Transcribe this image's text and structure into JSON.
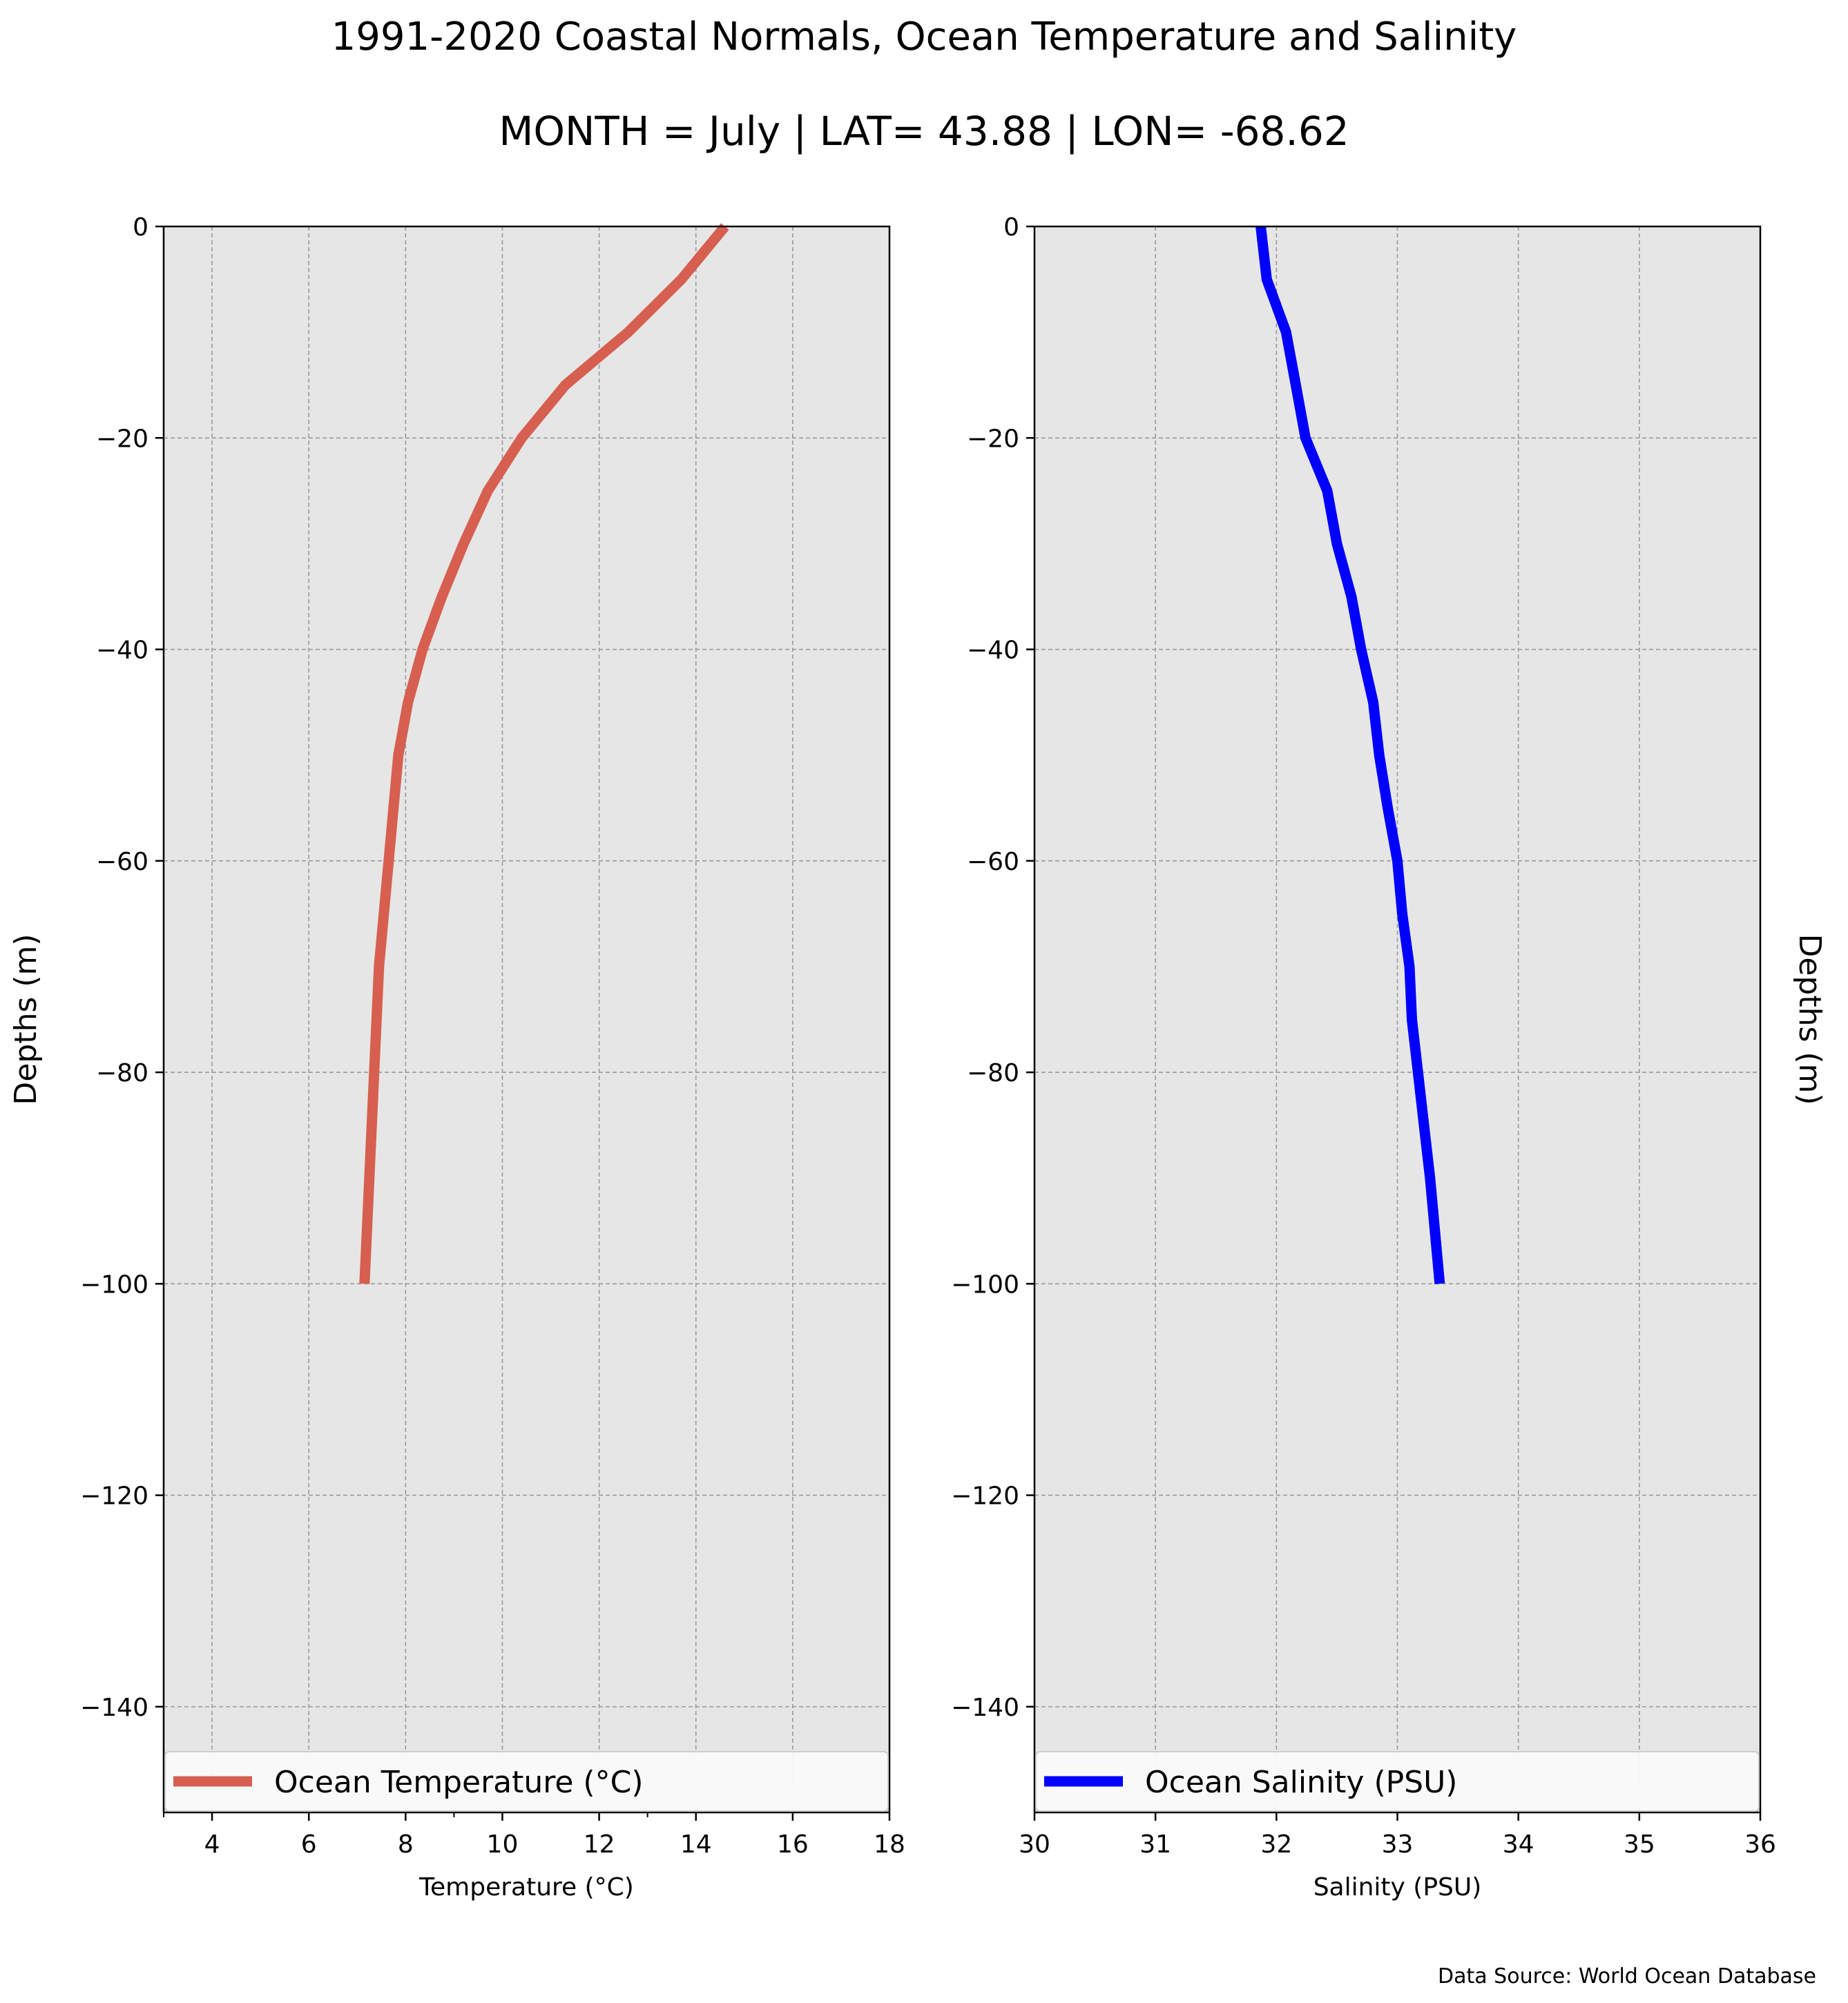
{
  "figure": {
    "title": "1991-2020 Coastal Normals, Ocean Temperature and Salinity",
    "subtitle": "MONTH = July | LAT= 43.88 | LON= -68.62",
    "source_note": "Data Source: World Ocean Database"
  },
  "colors": {
    "plot_background": "#e6e6e6",
    "grid": "#999999",
    "temperature_line": "#d65f50",
    "salinity_line": "#0000ff"
  },
  "chart_data": [
    {
      "type": "line",
      "xlabel": "Temperature ($^\\circ$C)",
      "xlabel_display": "Temperature (°C)",
      "ylabel": "Depths (m)",
      "xlim": [
        3,
        18
      ],
      "ylim": [
        -150,
        0
      ],
      "xticks": [
        "4",
        "6",
        "8",
        "10",
        "12",
        "14",
        "16",
        "18"
      ],
      "xtick_values": [
        4,
        6,
        8,
        10,
        12,
        14,
        16,
        18
      ],
      "minor_xtick_values": [
        3,
        9,
        13
      ],
      "yticks": [
        "0",
        "−20",
        "−40",
        "−60",
        "−80",
        "−100",
        "−120",
        "−140"
      ],
      "ytick_values": [
        0,
        -20,
        -40,
        -60,
        -80,
        -100,
        -120,
        -140
      ],
      "grid": true,
      "legend_position": "bottom",
      "series": [
        {
          "name": "Ocean Temperature ($^\\circ$C)",
          "legend_display": "Ocean Temperature (°C)",
          "color": "#d65f50",
          "x": [
            14.6,
            13.7,
            12.6,
            11.3,
            10.4,
            9.7,
            9.2,
            8.75,
            8.35,
            8.05,
            7.85,
            7.75,
            7.65,
            7.55,
            7.45,
            7.4,
            7.35,
            7.3,
            7.25,
            7.2,
            7.15
          ],
          "y": [
            0,
            -5,
            -10,
            -15,
            -20,
            -25,
            -30,
            -35,
            -40,
            -45,
            -50,
            -55,
            -60,
            -65,
            -70,
            -75,
            -80,
            -85,
            -90,
            -95,
            -100
          ]
        }
      ]
    },
    {
      "type": "line",
      "xlabel": "Salinity (PSU)",
      "ylabel": "Depths (m)",
      "xlim": [
        30,
        36
      ],
      "ylim": [
        -150,
        0
      ],
      "xticks": [
        "30",
        "31",
        "32",
        "33",
        "34",
        "35",
        "36"
      ],
      "xtick_values": [
        30,
        31,
        32,
        33,
        34,
        35,
        36
      ],
      "yticks": [
        "0",
        "−20",
        "−40",
        "−60",
        "−80",
        "−100",
        "−120",
        "−140"
      ],
      "ytick_values": [
        0,
        -20,
        -40,
        -60,
        -80,
        -100,
        -120,
        -140
      ],
      "grid": true,
      "legend_position": "bottom",
      "series": [
        {
          "name": "Ocean Salinity (PSU)",
          "color": "#0000ff",
          "x": [
            31.87,
            31.92,
            32.08,
            32.16,
            32.24,
            32.42,
            32.5,
            32.62,
            32.7,
            32.8,
            32.85,
            32.92,
            33.0,
            33.04,
            33.1,
            33.12,
            33.17,
            33.22,
            33.27,
            33.31,
            33.35
          ],
          "y": [
            0,
            -5,
            -10,
            -15,
            -20,
            -25,
            -30,
            -35,
            -40,
            -45,
            -50,
            -55,
            -60,
            -65,
            -70,
            -75,
            -80,
            -85,
            -90,
            -95,
            -100
          ]
        }
      ]
    }
  ]
}
